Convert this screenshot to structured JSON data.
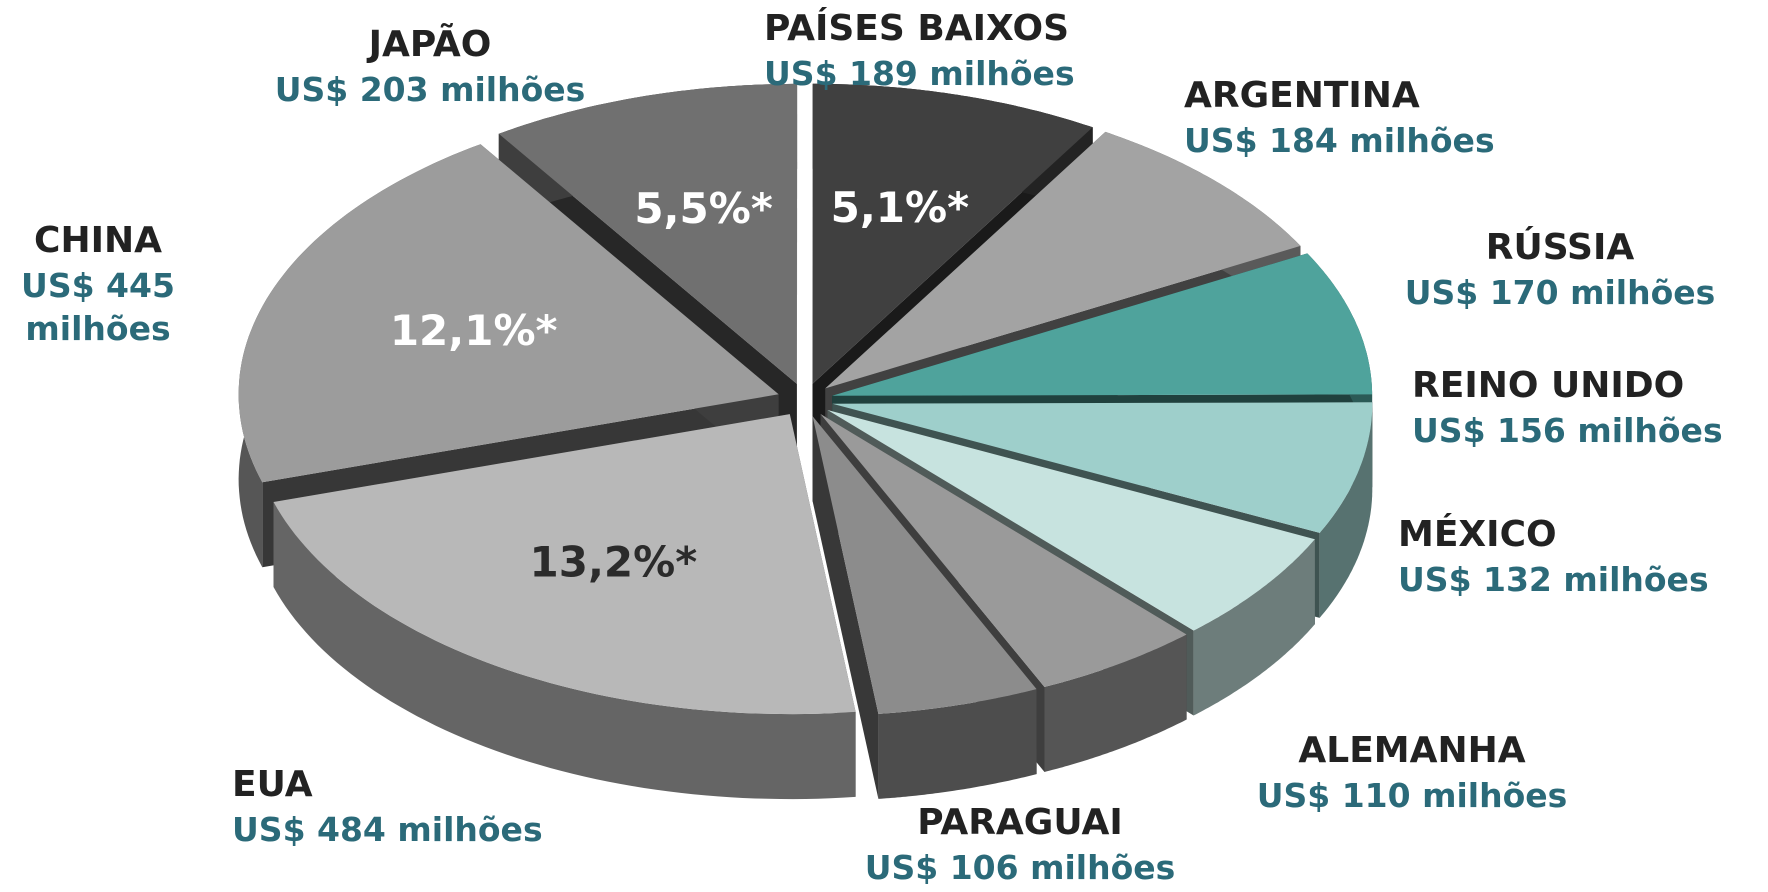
{
  "chart_data": {
    "type": "pie",
    "labels": [
      "EUA",
      "CHINA",
      "JAPÃO",
      "PAÍSES BAIXOS",
      "ARGENTINA",
      "RÚSSIA",
      "REINO UNIDO",
      "MÉXICO",
      "ALEMANHA",
      "PARAGUAI"
    ],
    "values": [
      484,
      445,
      203,
      189,
      184,
      170,
      156,
      132,
      110,
      106
    ],
    "value_labels": [
      "US$ 484 milhões",
      "US$ 445 milhões",
      "US$ 203 milhões",
      "US$ 189 milhões",
      "US$ 184 milhões",
      "US$ 170 milhões",
      "US$ 156 milhões",
      "US$ 132 milhões",
      "US$ 110 milhões",
      "US$ 106 milhões"
    ],
    "colors": [
      "#b8b8b8",
      "#9c9c9c",
      "#707070",
      "#404040",
      "#a3a3a3",
      "#4fa39c",
      "#9ecfcb",
      "#c7e3df",
      "#9a9a9a",
      "#8c8c8c"
    ],
    "shares": [
      13.2,
      12.1,
      5.5,
      5.1,
      null,
      null,
      null,
      null,
      null,
      null
    ],
    "share_labels": [
      "13,2%*",
      "12,1%*",
      "5,5%*",
      "5,1%*",
      null,
      null,
      null,
      null,
      null,
      null
    ]
  }
}
